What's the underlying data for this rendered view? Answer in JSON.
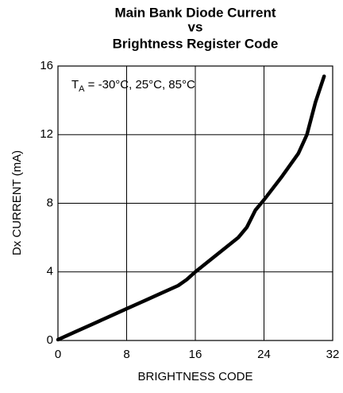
{
  "chart_data": {
    "type": "line",
    "title": [
      "Main Bank Diode Current",
      "vs",
      "Brightness Register Code"
    ],
    "annotation": [
      "T",
      "A",
      " = -30°C, 25°C, 85°C"
    ],
    "x_label": "BRIGHTNESS CODE",
    "y_label": "Dx CURRENT (mA)",
    "x": [
      0,
      2,
      4,
      6,
      8,
      10,
      12,
      14,
      15,
      16,
      18,
      20,
      21,
      22,
      23,
      24,
      26,
      28,
      29,
      30,
      31
    ],
    "values": [
      0.05,
      0.5,
      0.95,
      1.4,
      1.85,
      2.3,
      2.75,
      3.2,
      3.55,
      4.0,
      4.8,
      5.6,
      6.0,
      6.6,
      7.6,
      8.2,
      9.5,
      10.9,
      12.0,
      13.9,
      15.4
    ],
    "color": "#000000",
    "xlim": [
      0,
      32
    ],
    "xticks": [
      0,
      8,
      16,
      24,
      32
    ],
    "ylim": [
      0,
      16
    ],
    "yticks": [
      0,
      4,
      8,
      12,
      16
    ],
    "grid": true
  }
}
